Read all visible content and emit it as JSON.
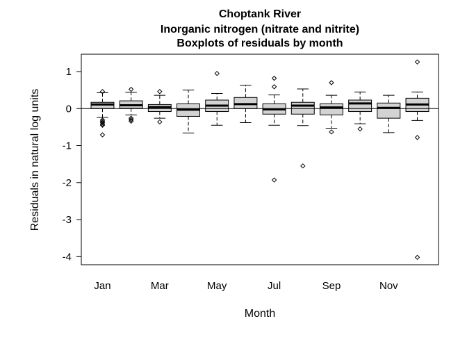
{
  "chart_data": {
    "type": "boxplot",
    "title": [
      "Choptank River",
      "Inorganic nitrogen (nitrate and nitrite)",
      "Boxplots of residuals by month"
    ],
    "xlabel": "Month",
    "ylabel": "Residuals in natural log units",
    "ylim": [
      -4.22,
      1.47
    ],
    "yticks": [
      -4,
      -3,
      -2,
      -1,
      0,
      1
    ],
    "reference_line": 0,
    "grid": false,
    "box_fill": "#d3d3d3",
    "categories": [
      "Jan",
      "Feb",
      "Mar",
      "Apr",
      "May",
      "Jun",
      "Jul",
      "Aug",
      "Sep",
      "Oct",
      "Nov",
      "Dec"
    ],
    "xtick_labels_shown": [
      "Jan",
      "Mar",
      "May",
      "Jul",
      "Sep",
      "Nov"
    ],
    "boxes": [
      {
        "month": "Jan",
        "lower_whisker": -0.24,
        "q1": 0.0,
        "median": 0.11,
        "q3": 0.17,
        "upper_whisker": 0.43,
        "outliers": [
          0.46,
          -0.31,
          -0.34,
          -0.38,
          -0.42,
          -0.45,
          -0.71
        ]
      },
      {
        "month": "Feb",
        "lower_whisker": -0.17,
        "q1": 0.01,
        "median": 0.09,
        "q3": 0.21,
        "upper_whisker": 0.44,
        "outliers": [
          0.52,
          -0.26,
          -0.3,
          -0.34
        ]
      },
      {
        "month": "Mar",
        "lower_whisker": -0.26,
        "q1": -0.08,
        "median": 0.04,
        "q3": 0.11,
        "upper_whisker": 0.36,
        "outliers": [
          0.46,
          -0.36
        ]
      },
      {
        "month": "Apr",
        "lower_whisker": -0.66,
        "q1": -0.21,
        "median": -0.03,
        "q3": 0.13,
        "upper_whisker": 0.5,
        "outliers": []
      },
      {
        "month": "May",
        "lower_whisker": -0.45,
        "q1": -0.08,
        "median": 0.08,
        "q3": 0.23,
        "upper_whisker": 0.41,
        "outliers": [
          0.95
        ]
      },
      {
        "month": "Jun",
        "lower_whisker": -0.38,
        "q1": 0.0,
        "median": 0.12,
        "q3": 0.3,
        "upper_whisker": 0.63,
        "outliers": []
      },
      {
        "month": "Jul",
        "lower_whisker": -0.45,
        "q1": -0.15,
        "median": -0.02,
        "q3": 0.13,
        "upper_whisker": 0.37,
        "outliers": [
          0.82,
          0.59,
          -1.93
        ]
      },
      {
        "month": "Aug",
        "lower_whisker": -0.46,
        "q1": -0.15,
        "median": 0.08,
        "q3": 0.17,
        "upper_whisker": 0.53,
        "outliers": [
          -1.55
        ]
      },
      {
        "month": "Sep",
        "lower_whisker": -0.53,
        "q1": -0.17,
        "median": 0.03,
        "q3": 0.13,
        "upper_whisker": 0.36,
        "outliers": [
          0.7,
          -0.63
        ]
      },
      {
        "month": "Oct",
        "lower_whisker": -0.41,
        "q1": -0.08,
        "median": 0.14,
        "q3": 0.23,
        "upper_whisker": 0.45,
        "outliers": [
          -0.55
        ]
      },
      {
        "month": "Nov",
        "lower_whisker": -0.65,
        "q1": -0.26,
        "median": 0.02,
        "q3": 0.15,
        "upper_whisker": 0.36,
        "outliers": []
      },
      {
        "month": "Dec",
        "lower_whisker": -0.32,
        "q1": -0.08,
        "median": 0.11,
        "q3": 0.28,
        "upper_whisker": 0.45,
        "outliers": [
          1.26,
          -0.78,
          -4.02
        ]
      }
    ]
  }
}
